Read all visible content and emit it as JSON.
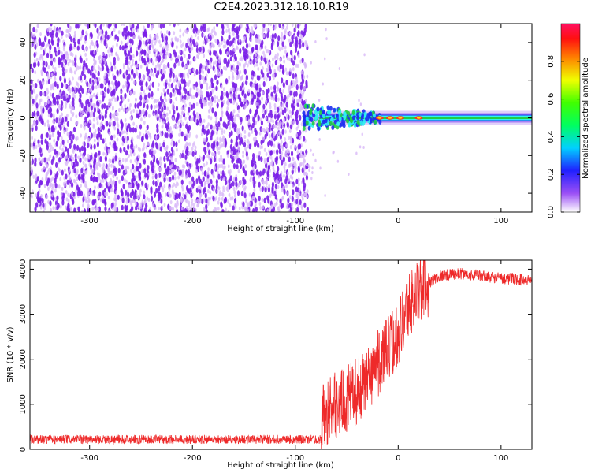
{
  "title": "C2E4.2023.312.18.10.R19",
  "colors": {
    "snr_line": "#ee2a2a",
    "noise_dot": "#7b1fe8",
    "noise_light": "#d8b8f8",
    "band_outer": "#c9a8f5",
    "band_inner": "#2ff0f0",
    "band_core": "#22cc44",
    "peak": "#ff2a2a"
  },
  "chart_data": [
    {
      "type": "heatmap",
      "xlabel": "Height of straight line (km)",
      "ylabel": "Frequency (Hz)",
      "xlim": [
        -358,
        130
      ],
      "ylim": [
        -50,
        50
      ],
      "xticks": [
        -300,
        -200,
        -100,
        0,
        100
      ],
      "yticks": [
        -40,
        -20,
        0,
        20,
        40
      ],
      "grid": false,
      "colorbar": {
        "label": "Normalized spectral amplitude",
        "range": [
          0.0,
          1.0
        ],
        "ticks": [
          0.0,
          0.2,
          0.4,
          0.6,
          0.8
        ]
      },
      "noise_region_x": [
        -358,
        -90
      ],
      "signal_band_frequency_hz": 0,
      "signal_start_x": -92,
      "peaks_x": [
        -18,
        -8,
        2,
        20
      ]
    },
    {
      "type": "line",
      "xlabel": "Height of straight line (km)",
      "ylabel": "SNR (10 * v/v)",
      "xlim": [
        -358,
        130
      ],
      "ylim": [
        0,
        4200
      ],
      "xticks": [
        -300,
        -200,
        -100,
        0,
        100
      ],
      "yticks": [
        0,
        1000,
        2000,
        3000,
        4000
      ],
      "grid": false,
      "series": [
        {
          "x": [
            -358,
            -300,
            -200,
            -100,
            -80,
            -75,
            -60,
            -50,
            -40,
            -30,
            -20,
            -10,
            0,
            10,
            20,
            30,
            40,
            60,
            80,
            100,
            130
          ],
          "y": [
            200,
            200,
            200,
            200,
            200,
            700,
            1000,
            1100,
            1300,
            1600,
            1900,
            2200,
            2600,
            3200,
            3500,
            3700,
            3850,
            3900,
            3850,
            3800,
            3750
          ]
        }
      ]
    }
  ]
}
